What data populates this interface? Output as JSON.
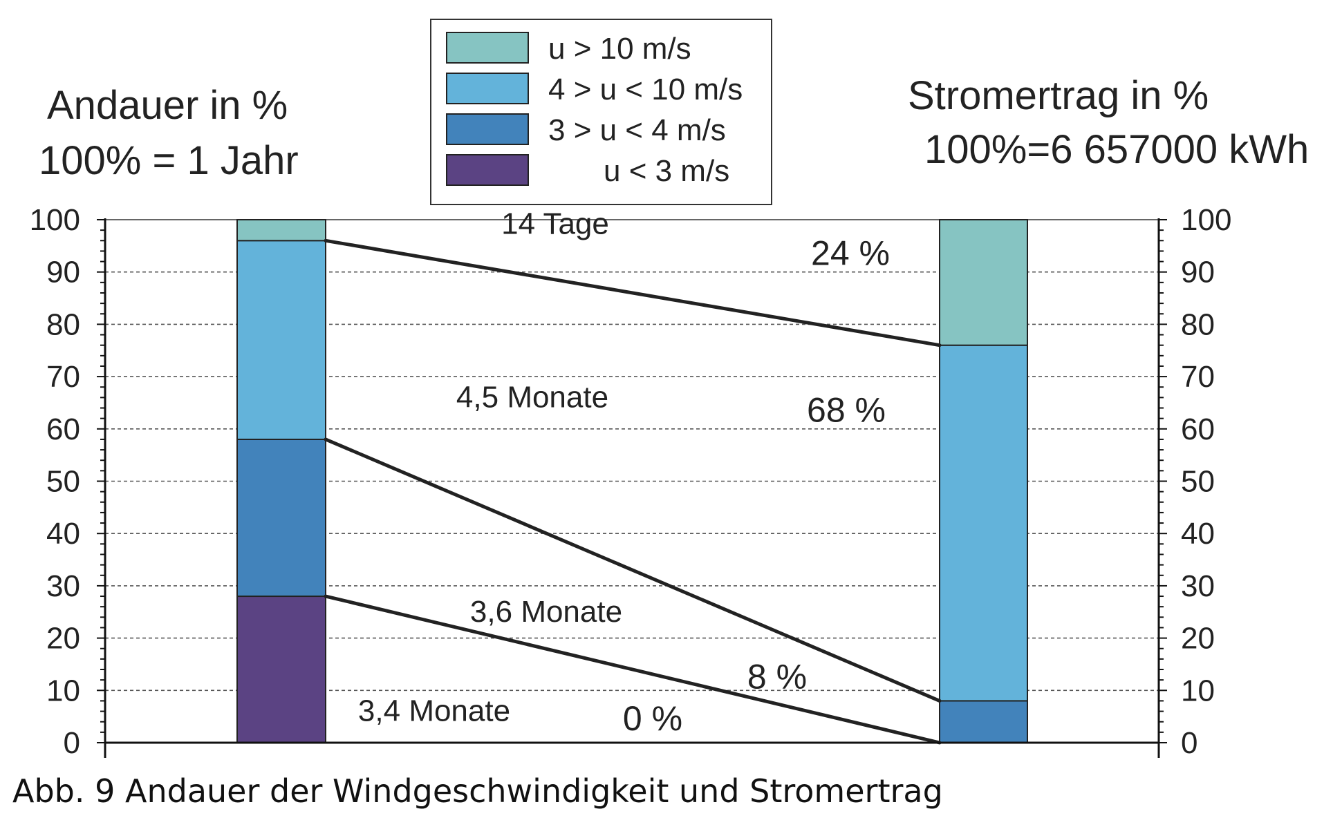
{
  "caption": "Abb. 9 Andauer der Windgeschwindigkeit und Stromertrag",
  "chart_data": {
    "type": "bar",
    "stacked": true,
    "left_axis_title": [
      "Andauer in %",
      "100% = 1 Jahr"
    ],
    "right_axis_title": [
      "Stromertrag in %",
      "100%=6 657000  kWh"
    ],
    "ylim": [
      0,
      100
    ],
    "yticks": [
      0,
      10,
      20,
      30,
      40,
      50,
      60,
      70,
      80,
      90,
      100
    ],
    "grid": true,
    "legend_position": "top-center",
    "legend": [
      {
        "label": "u > 10 m/s",
        "color": "#86c4c2"
      },
      {
        "label": "4 > u < 10 m/s",
        "color": "#63b3da"
      },
      {
        "label": "3 > u < 4 m/s",
        "color": "#4283bb"
      },
      {
        "label": "u < 3 m/s",
        "color": "#5b4383"
      }
    ],
    "bars": [
      {
        "name": "Andauer",
        "segments": [
          {
            "from": 0,
            "to": 28,
            "color": "#5b4383"
          },
          {
            "from": 28,
            "to": 58,
            "color": "#4283bb"
          },
          {
            "from": 58,
            "to": 96,
            "color": "#63b3da"
          },
          {
            "from": 96,
            "to": 100,
            "color": "#86c4c2"
          }
        ]
      },
      {
        "name": "Stromertrag",
        "segments": [
          {
            "from": 0,
            "to": 8,
            "color": "#4283bb"
          },
          {
            "from": 8,
            "to": 76,
            "color": "#63b3da"
          },
          {
            "from": 76,
            "to": 100,
            "color": "#86c4c2"
          }
        ]
      }
    ],
    "connectors": [
      {
        "from": 96,
        "to": 76
      },
      {
        "from": 58,
        "to": 8
      },
      {
        "from": 28,
        "to": 0
      }
    ],
    "duration_labels": [
      {
        "text": "14 Tage",
        "y": 96
      },
      {
        "text": "4,5 Monate",
        "y": 66
      },
      {
        "text": "3,6 Monate",
        "y": 25
      },
      {
        "text": "3,4 Monate",
        "y": 6
      }
    ],
    "energy_labels": [
      {
        "text": "24 %",
        "y": 94
      },
      {
        "text": "68 %",
        "y": 64
      },
      {
        "text": "8 %",
        "y": 13
      },
      {
        "text": "0 %",
        "y": 5
      }
    ]
  }
}
